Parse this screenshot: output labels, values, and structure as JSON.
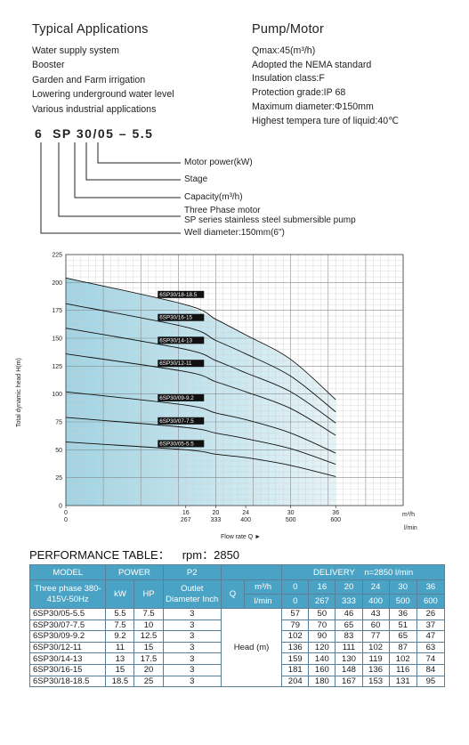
{
  "typical_applications": {
    "title": "Typical Applications",
    "items": [
      "Water supply system",
      "Booster",
      "Garden and Farm irrigation",
      "Lowering underground water level",
      "Various industrial applications"
    ]
  },
  "pump_motor": {
    "title": "Pump/Motor",
    "items": [
      "Qmax:45(m³/h)",
      "Adopted the NEMA standard",
      "Insulation class:F",
      "Protection grade:IP 68",
      "Maximum diameter:Φ150mm",
      "Highest tempera ture of liquid:40℃"
    ]
  },
  "model_code": {
    "code": "6  SP 30/05 – 5.5",
    "legend": [
      "Motor power(kW)",
      "Stage",
      "Capacity(m³/h)",
      "Three Phase motor",
      "SP series stainless steel submersible pump",
      "Well diameter:150mm(6\")"
    ]
  },
  "chart_data": {
    "type": "line",
    "ylabel": "Total dynamic head H(m)",
    "xlabel": "Flow rate Q",
    "x_units": [
      "m³/h",
      "l/min"
    ],
    "y_ticks": [
      0,
      25,
      50,
      75,
      100,
      125,
      150,
      175,
      200,
      225
    ],
    "x_ticks_m3h": [
      0,
      16,
      20,
      24,
      30,
      36
    ],
    "x_ticks_lmin": [
      0,
      267,
      333,
      400,
      500,
      600
    ],
    "ylim": [
      0,
      225
    ],
    "xlim": [
      0,
      45
    ],
    "grid": true,
    "x": [
      0,
      16,
      20,
      24,
      30,
      36
    ],
    "series": [
      {
        "name": "6SP30/18-18.5",
        "values": [
          204,
          180,
          167,
          153,
          131,
          95
        ]
      },
      {
        "name": "6SP30/16-15",
        "values": [
          181,
          160,
          148,
          136,
          116,
          84
        ]
      },
      {
        "name": "6SP30/14-13",
        "values": [
          159,
          140,
          130,
          119,
          102,
          74
        ]
      },
      {
        "name": "6SP30/12-11",
        "values": [
          136,
          120,
          111,
          102,
          87,
          63
        ]
      },
      {
        "name": "6SP30/09-9.2",
        "values": [
          102,
          90,
          83,
          77,
          65,
          47
        ]
      },
      {
        "name": "6SP30/07-7.5",
        "values": [
          79,
          70,
          65,
          60,
          51,
          37
        ]
      },
      {
        "name": "6SP30/05-5.5",
        "values": [
          57,
          50,
          46,
          43,
          36,
          26
        ]
      }
    ]
  },
  "performance": {
    "title": "PERFORMANCE TABLE：",
    "rpm": "rpm：2850",
    "h_model": "MODEL",
    "h_power": "POWER",
    "h_p2": "P2",
    "h_delivery": "DELIVERY",
    "h_n": "n=2850 l/min",
    "h_phase": "Three phase 380-415V-50Hz",
    "h_kw": "kW",
    "h_hp": "HP",
    "h_outlet": "Outlet Diameter Inch",
    "h_q": "Q",
    "h_m3h": "m³/h",
    "h_lmin": "l/min",
    "q_m3h": [
      "0",
      "16",
      "20",
      "24",
      "30",
      "36"
    ],
    "q_lmin": [
      "0",
      "267",
      "333",
      "400",
      "500",
      "600"
    ],
    "head_label": "Head (m)",
    "rows": [
      {
        "model": "6SP30/05-5.5",
        "kw": "5.5",
        "hp": "7.5",
        "outlet": "3",
        "head": [
          "57",
          "50",
          "46",
          "43",
          "36",
          "26"
        ]
      },
      {
        "model": "6SP30/07-7.5",
        "kw": "7.5",
        "hp": "10",
        "outlet": "3",
        "head": [
          "79",
          "70",
          "65",
          "60",
          "51",
          "37"
        ]
      },
      {
        "model": "6SP30/09-9.2",
        "kw": "9.2",
        "hp": "12.5",
        "outlet": "3",
        "head": [
          "102",
          "90",
          "83",
          "77",
          "65",
          "47"
        ]
      },
      {
        "model": "6SP30/12-11",
        "kw": "11",
        "hp": "15",
        "outlet": "3",
        "head": [
          "136",
          "120",
          "111",
          "102",
          "87",
          "63"
        ]
      },
      {
        "model": "6SP30/14-13",
        "kw": "13",
        "hp": "17.5",
        "outlet": "3",
        "head": [
          "159",
          "140",
          "130",
          "119",
          "102",
          "74"
        ]
      },
      {
        "model": "6SP30/16-15",
        "kw": "15",
        "hp": "20",
        "outlet": "3",
        "head": [
          "181",
          "160",
          "148",
          "136",
          "116",
          "84"
        ]
      },
      {
        "model": "6SP30/18-18.5",
        "kw": "18.5",
        "hp": "25",
        "outlet": "3",
        "head": [
          "204",
          "180",
          "167",
          "153",
          "131",
          "95"
        ]
      }
    ]
  }
}
